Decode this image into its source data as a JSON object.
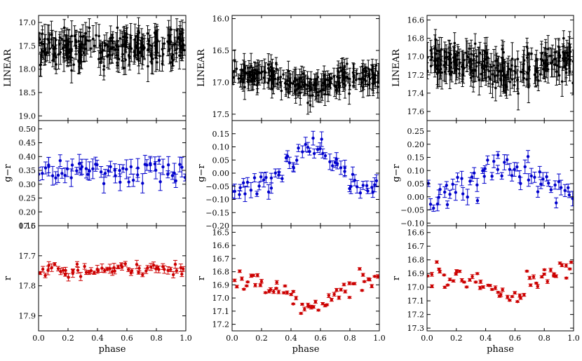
{
  "chart_data": {
    "type": "scatter",
    "x_label": "phase",
    "x_range": [
      0.0,
      1.0
    ],
    "x_ticks": [
      "0.0",
      "0.2",
      "0.4",
      "0.6",
      "0.8",
      "1.0"
    ],
    "colors": {
      "linear": "#000000",
      "gr": "#0000cc",
      "r": "#cc0000"
    },
    "columns": [
      {
        "panels": [
          {
            "kind": "linear",
            "ylabel": "LINEAR",
            "ylim": [
              19.1,
              16.85
            ],
            "inverted": true,
            "ticks": [
              "17.0",
              "17.5",
              "18.0",
              "18.5",
              "19.0"
            ],
            "tickvals": [
              17.0,
              17.5,
              18.0,
              18.5,
              19.0
            ],
            "mean": 17.55,
            "amp": 0.12,
            "shape": "flat",
            "scatter": 0.18,
            "err": 0.22,
            "n": 240
          },
          {
            "kind": "gr",
            "ylabel": "g−r",
            "ylim": [
              0.15,
              0.53
            ],
            "inverted": false,
            "ticks": [
              "0.15",
              "0.20",
              "0.25",
              "0.30",
              "0.35",
              "0.40",
              "0.45",
              "0.50"
            ],
            "tickvals": [
              0.15,
              0.2,
              0.25,
              0.3,
              0.35,
              0.4,
              0.45,
              0.5
            ],
            "mean": 0.345,
            "amp": 0.0,
            "shape": "flat",
            "scatter": 0.02,
            "err": 0.025,
            "n": 58
          },
          {
            "kind": "r",
            "ylabel": "r",
            "ylim": [
              17.95,
              17.6
            ],
            "inverted": true,
            "ticks": [
              "17.6",
              "17.7",
              "17.8",
              "17.9"
            ],
            "tickvals": [
              17.6,
              17.7,
              17.8,
              17.9
            ],
            "mean": 17.745,
            "amp": 0.0,
            "shape": "flat",
            "scatter": 0.01,
            "err": 0.01,
            "n": 60
          }
        ]
      },
      {
        "panels": [
          {
            "kind": "linear",
            "ylabel": "LINEAR",
            "ylim": [
              17.6,
              15.95
            ],
            "inverted": true,
            "ticks": [
              "16.0",
              "16.5",
              "17.0",
              "17.5"
            ],
            "tickvals": [
              16.0,
              16.5,
              17.0,
              17.5
            ],
            "mean": 16.88,
            "amp": 0.2,
            "shape": "dip",
            "scatter": 0.1,
            "err": 0.13,
            "n": 240
          },
          {
            "kind": "gr",
            "ylabel": "g−r",
            "ylim": [
              -0.2,
              0.2
            ],
            "inverted": false,
            "ticks": [
              "−0.20",
              "−0.15",
              "−0.10",
              "−0.05",
              "0.00",
              "0.05",
              "0.10",
              "0.15"
            ],
            "tickvals": [
              -0.2,
              -0.15,
              -0.1,
              -0.05,
              0.0,
              0.05,
              0.1,
              0.15
            ],
            "mean": 0.03,
            "amp": 0.08,
            "shape": "hump",
            "scatter": 0.025,
            "err": 0.02,
            "n": 60
          },
          {
            "kind": "r",
            "ylabel": "r",
            "ylim": [
              17.25,
              16.45
            ],
            "inverted": true,
            "ticks": [
              "16.5",
              "16.6",
              "16.7",
              "16.8",
              "16.9",
              "17.0",
              "17.1",
              "17.2"
            ],
            "tickvals": [
              16.5,
              16.6,
              16.7,
              16.8,
              16.9,
              17.0,
              17.1,
              17.2
            ],
            "mean": 16.88,
            "amp": 0.2,
            "shape": "dip",
            "scatter": 0.04,
            "err": 0.01,
            "n": 60
          }
        ]
      },
      {
        "panels": [
          {
            "kind": "linear",
            "ylabel": "LINEAR",
            "ylim": [
              17.7,
              16.55
            ],
            "inverted": true,
            "ticks": [
              "16.6",
              "16.8",
              "17.0",
              "17.2",
              "17.4",
              "17.6"
            ],
            "tickvals": [
              16.6,
              16.8,
              17.0,
              17.2,
              17.4,
              17.6
            ],
            "mean": 17.05,
            "amp": 0.15,
            "shape": "dip",
            "scatter": 0.1,
            "err": 0.12,
            "n": 240
          },
          {
            "kind": "gr",
            "ylabel": "g−r",
            "ylim": [
              -0.11,
              0.29
            ],
            "inverted": false,
            "ticks": [
              "−0.10",
              "−0.05",
              "0.00",
              "0.05",
              "0.10",
              "0.15",
              "0.20",
              "0.25"
            ],
            "tickvals": [
              -0.1,
              -0.05,
              0.0,
              0.05,
              0.1,
              0.15,
              0.2,
              0.25
            ],
            "mean": 0.07,
            "amp": 0.05,
            "shape": "hump",
            "scatter": 0.03,
            "err": 0.02,
            "n": 58
          },
          {
            "kind": "r",
            "ylabel": "r",
            "ylim": [
              17.32,
              16.55
            ],
            "inverted": true,
            "ticks": [
              "16.6",
              "16.7",
              "16.8",
              "16.9",
              "17.0",
              "17.1",
              "17.2",
              "17.3"
            ],
            "tickvals": [
              16.6,
              16.7,
              16.8,
              16.9,
              17.0,
              17.1,
              17.2,
              17.3
            ],
            "mean": 16.9,
            "amp": 0.15,
            "shape": "dip",
            "scatter": 0.05,
            "err": 0.01,
            "n": 60
          }
        ]
      }
    ]
  }
}
